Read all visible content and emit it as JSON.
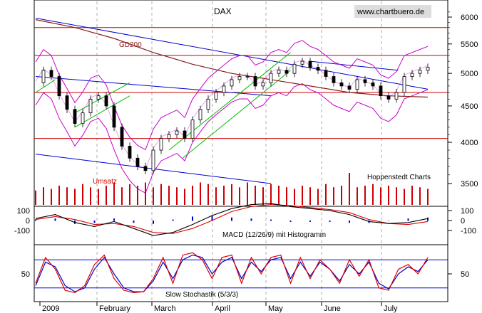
{
  "header": {
    "title": "DAX",
    "watermark": "www.chartbuero.de",
    "source": "Hoppenstedt Charts"
  },
  "labels": {
    "ma": "GD200",
    "volume": "Umsatz",
    "macd": "MACD (12/26/9) mit Histogramm",
    "stoch": "Slow Stochastik (5/3/3)"
  },
  "colors": {
    "price": "#000000",
    "bollinger": "#cc00cc",
    "ma200": "#8b1a1a",
    "support": "#cc0000",
    "trend": "#0000cc",
    "channel": "#00bb00",
    "volume": "#cc0000",
    "macd_line": "#000000",
    "macd_signal": "#dd0000",
    "histogram": "#0000cc",
    "stoch_k": "#dd0000",
    "stoch_d": "#0000cc",
    "grid": "#999999"
  },
  "chart_data": [
    {
      "type": "candlestick",
      "title": "DAX",
      "y_ticks": [
        3500,
        4000,
        4500,
        5000,
        5500,
        6000
      ],
      "y_scale": "log",
      "ylim": [
        3350,
        6200
      ],
      "x_ticks": [
        "2009",
        "February",
        "March",
        "April",
        "May",
        "June",
        "July"
      ],
      "horizontal_levels": [
        5800,
        5300,
        4700,
        4050
      ],
      "series": [
        {
          "name": "DAX",
          "x": [
            0,
            4,
            8,
            12,
            16,
            20,
            24,
            28,
            32,
            36,
            40,
            44,
            48,
            52,
            56,
            60,
            64,
            68,
            72,
            76,
            80,
            84,
            88,
            92,
            96,
            100,
            104,
            108,
            112,
            116,
            120,
            124,
            128,
            132,
            136,
            140,
            144,
            148,
            152,
            156,
            160,
            164,
            168,
            172,
            176,
            180,
            184,
            188,
            192,
            196,
            200
          ],
          "y": [
            4850,
            5050,
            4950,
            4650,
            4450,
            4250,
            4400,
            4600,
            4650,
            4500,
            4200,
            3950,
            3800,
            3700,
            3650,
            3900,
            4050,
            4100,
            4150,
            4050,
            4300,
            4450,
            4600,
            4700,
            4800,
            4900,
            4950,
            4950,
            4800,
            4850,
            5000,
            5050,
            5000,
            5150,
            5200,
            5100,
            5050,
            4950,
            4850,
            4800,
            4750,
            4900,
            4850,
            4800,
            4650,
            4600,
            4700,
            4950,
            5000,
            5050,
            5100
          ]
        },
        {
          "name": "GD200",
          "x": [
            0,
            20,
            40,
            60,
            80,
            100,
            120,
            140,
            160,
            180,
            200
          ],
          "y": [
            5950,
            5800,
            5600,
            5350,
            5150,
            5000,
            4900,
            4800,
            4700,
            4650,
            4630
          ]
        }
      ]
    },
    {
      "type": "bar",
      "title": "Umsatz",
      "x": [
        0,
        4,
        8,
        12,
        16,
        20,
        24,
        28,
        32,
        36,
        40,
        44,
        48,
        52,
        56,
        60,
        64,
        68,
        72,
        76,
        80,
        84,
        88,
        92,
        96,
        100,
        104,
        108,
        112,
        116,
        120,
        124,
        128,
        132,
        136,
        140,
        144,
        148,
        152,
        156,
        160,
        164,
        168,
        172,
        176,
        180,
        184,
        188,
        192,
        196,
        200
      ],
      "values": [
        45,
        55,
        50,
        60,
        55,
        50,
        65,
        55,
        50,
        60,
        70,
        55,
        65,
        60,
        70,
        55,
        65,
        60,
        55,
        50,
        60,
        70,
        65,
        55,
        60,
        65,
        55,
        70,
        60,
        55,
        65,
        60,
        55,
        50,
        60,
        55,
        50,
        65,
        55,
        60,
        100,
        55,
        60,
        65,
        55,
        60,
        55,
        50,
        60,
        55,
        50
      ]
    },
    {
      "type": "line",
      "title": "MACD (12/26/9) mit Histogramm",
      "y_ticks": [
        100,
        0,
        -100
      ],
      "ylim": [
        -200,
        200
      ],
      "x": [
        0,
        10,
        20,
        30,
        40,
        50,
        60,
        70,
        80,
        90,
        100,
        110,
        120,
        130,
        140,
        150,
        160,
        170,
        180,
        190,
        200
      ],
      "series": [
        {
          "name": "MACD",
          "values": [
            20,
            60,
            -20,
            -60,
            -10,
            -80,
            -150,
            -120,
            -40,
            50,
            120,
            160,
            170,
            140,
            120,
            100,
            60,
            -10,
            -30,
            -20,
            20
          ]
        },
        {
          "name": "Signal",
          "values": [
            10,
            40,
            10,
            -40,
            -30,
            -60,
            -120,
            -130,
            -80,
            0,
            90,
            140,
            160,
            150,
            130,
            110,
            80,
            10,
            -30,
            -40,
            -10
          ]
        },
        {
          "name": "Histogramm",
          "values": [
            10,
            20,
            -30,
            -20,
            20,
            -20,
            -30,
            10,
            40,
            50,
            30,
            20,
            10,
            -10,
            -10,
            -10,
            -20,
            -20,
            0,
            20,
            30
          ]
        }
      ]
    },
    {
      "type": "line",
      "title": "Slow Stochastik (5/3/3)",
      "y_ticks": [
        50
      ],
      "ylim": [
        0,
        100
      ],
      "reference_levels": [
        80,
        20
      ],
      "x": [
        0,
        5,
        10,
        15,
        20,
        25,
        30,
        35,
        40,
        45,
        50,
        55,
        60,
        65,
        70,
        75,
        80,
        85,
        90,
        95,
        100,
        105,
        110,
        115,
        120,
        125,
        130,
        135,
        140,
        145,
        150,
        155,
        160,
        165,
        170,
        175,
        180,
        185,
        190,
        195,
        200
      ],
      "series": [
        {
          "name": "%K",
          "values": [
            30,
            85,
            60,
            15,
            10,
            25,
            70,
            90,
            40,
            15,
            10,
            12,
            40,
            85,
            30,
            90,
            95,
            80,
            40,
            85,
            90,
            30,
            85,
            50,
            85,
            90,
            30,
            85,
            40,
            80,
            60,
            30,
            80,
            45,
            80,
            20,
            15,
            60,
            70,
            50,
            85
          ]
        },
        {
          "name": "%D",
          "values": [
            25,
            75,
            65,
            25,
            12,
            20,
            60,
            85,
            50,
            20,
            12,
            12,
            35,
            75,
            40,
            80,
            90,
            85,
            50,
            75,
            85,
            40,
            75,
            55,
            80,
            85,
            40,
            75,
            45,
            75,
            60,
            35,
            70,
            50,
            75,
            30,
            18,
            50,
            65,
            55,
            80
          ]
        }
      ]
    }
  ]
}
